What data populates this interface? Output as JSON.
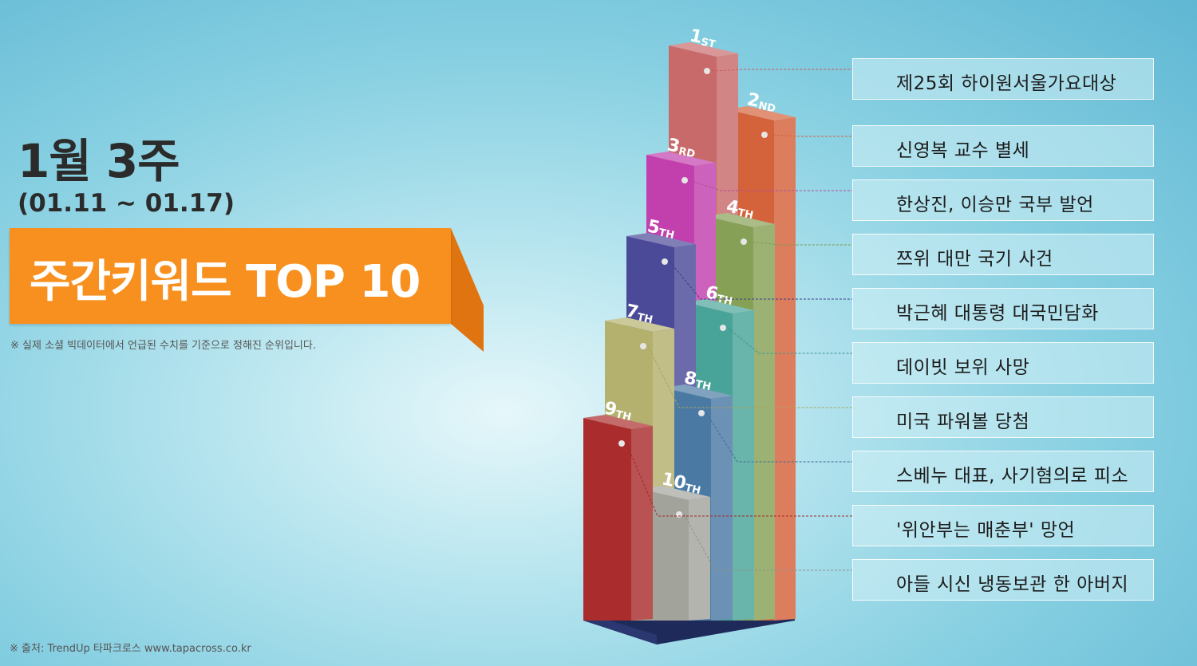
{
  "header": {
    "week_title": "1월 3주",
    "date_range": "(01.11 ~ 01.17)",
    "banner_title": "주간키워드 TOP 10",
    "note": "※ 실제 소셜 빅데이터에서 언급된 수치를 기준으로 정해진 순위입니다."
  },
  "footer": {
    "source": "※ 출처: TrendUp  타파크로스  www.tapacross.co.kr"
  },
  "ranks": [
    {
      "num": "1",
      "suffix": "ST",
      "keyword": "제25회 하이원서울가요대상",
      "color": "#c86a6a"
    },
    {
      "num": "2",
      "suffix": "ND",
      "keyword": "신영복 교수 별세",
      "color": "#d4623a"
    },
    {
      "num": "3",
      "suffix": "RD",
      "keyword": "한상진, 이승만 국부 발언",
      "color": "#c23fae"
    },
    {
      "num": "4",
      "suffix": "TH",
      "keyword": "쯔위 대만 국기 사건",
      "color": "#86a156"
    },
    {
      "num": "5",
      "suffix": "TH",
      "keyword": "박근혜 대통령 대국민담화",
      "color": "#4a4a98"
    },
    {
      "num": "6",
      "suffix": "TH",
      "keyword": "데이빗 보위 사망",
      "color": "#48a398"
    },
    {
      "num": "7",
      "suffix": "TH",
      "keyword": "미국 파워볼 당첨",
      "color": "#b4b06e"
    },
    {
      "num": "8",
      "suffix": "TH",
      "keyword": "스베누 대표, 사기혐의로 피소",
      "color": "#4a7aa4"
    },
    {
      "num": "9",
      "suffix": "TH",
      "keyword": "'위안부는 매춘부' 망언",
      "color": "#aa2c2c"
    },
    {
      "num": "10",
      "suffix": "TH",
      "keyword": "아들 시신 냉동보관 한 아버지",
      "color": "#a2a49c"
    }
  ]
}
